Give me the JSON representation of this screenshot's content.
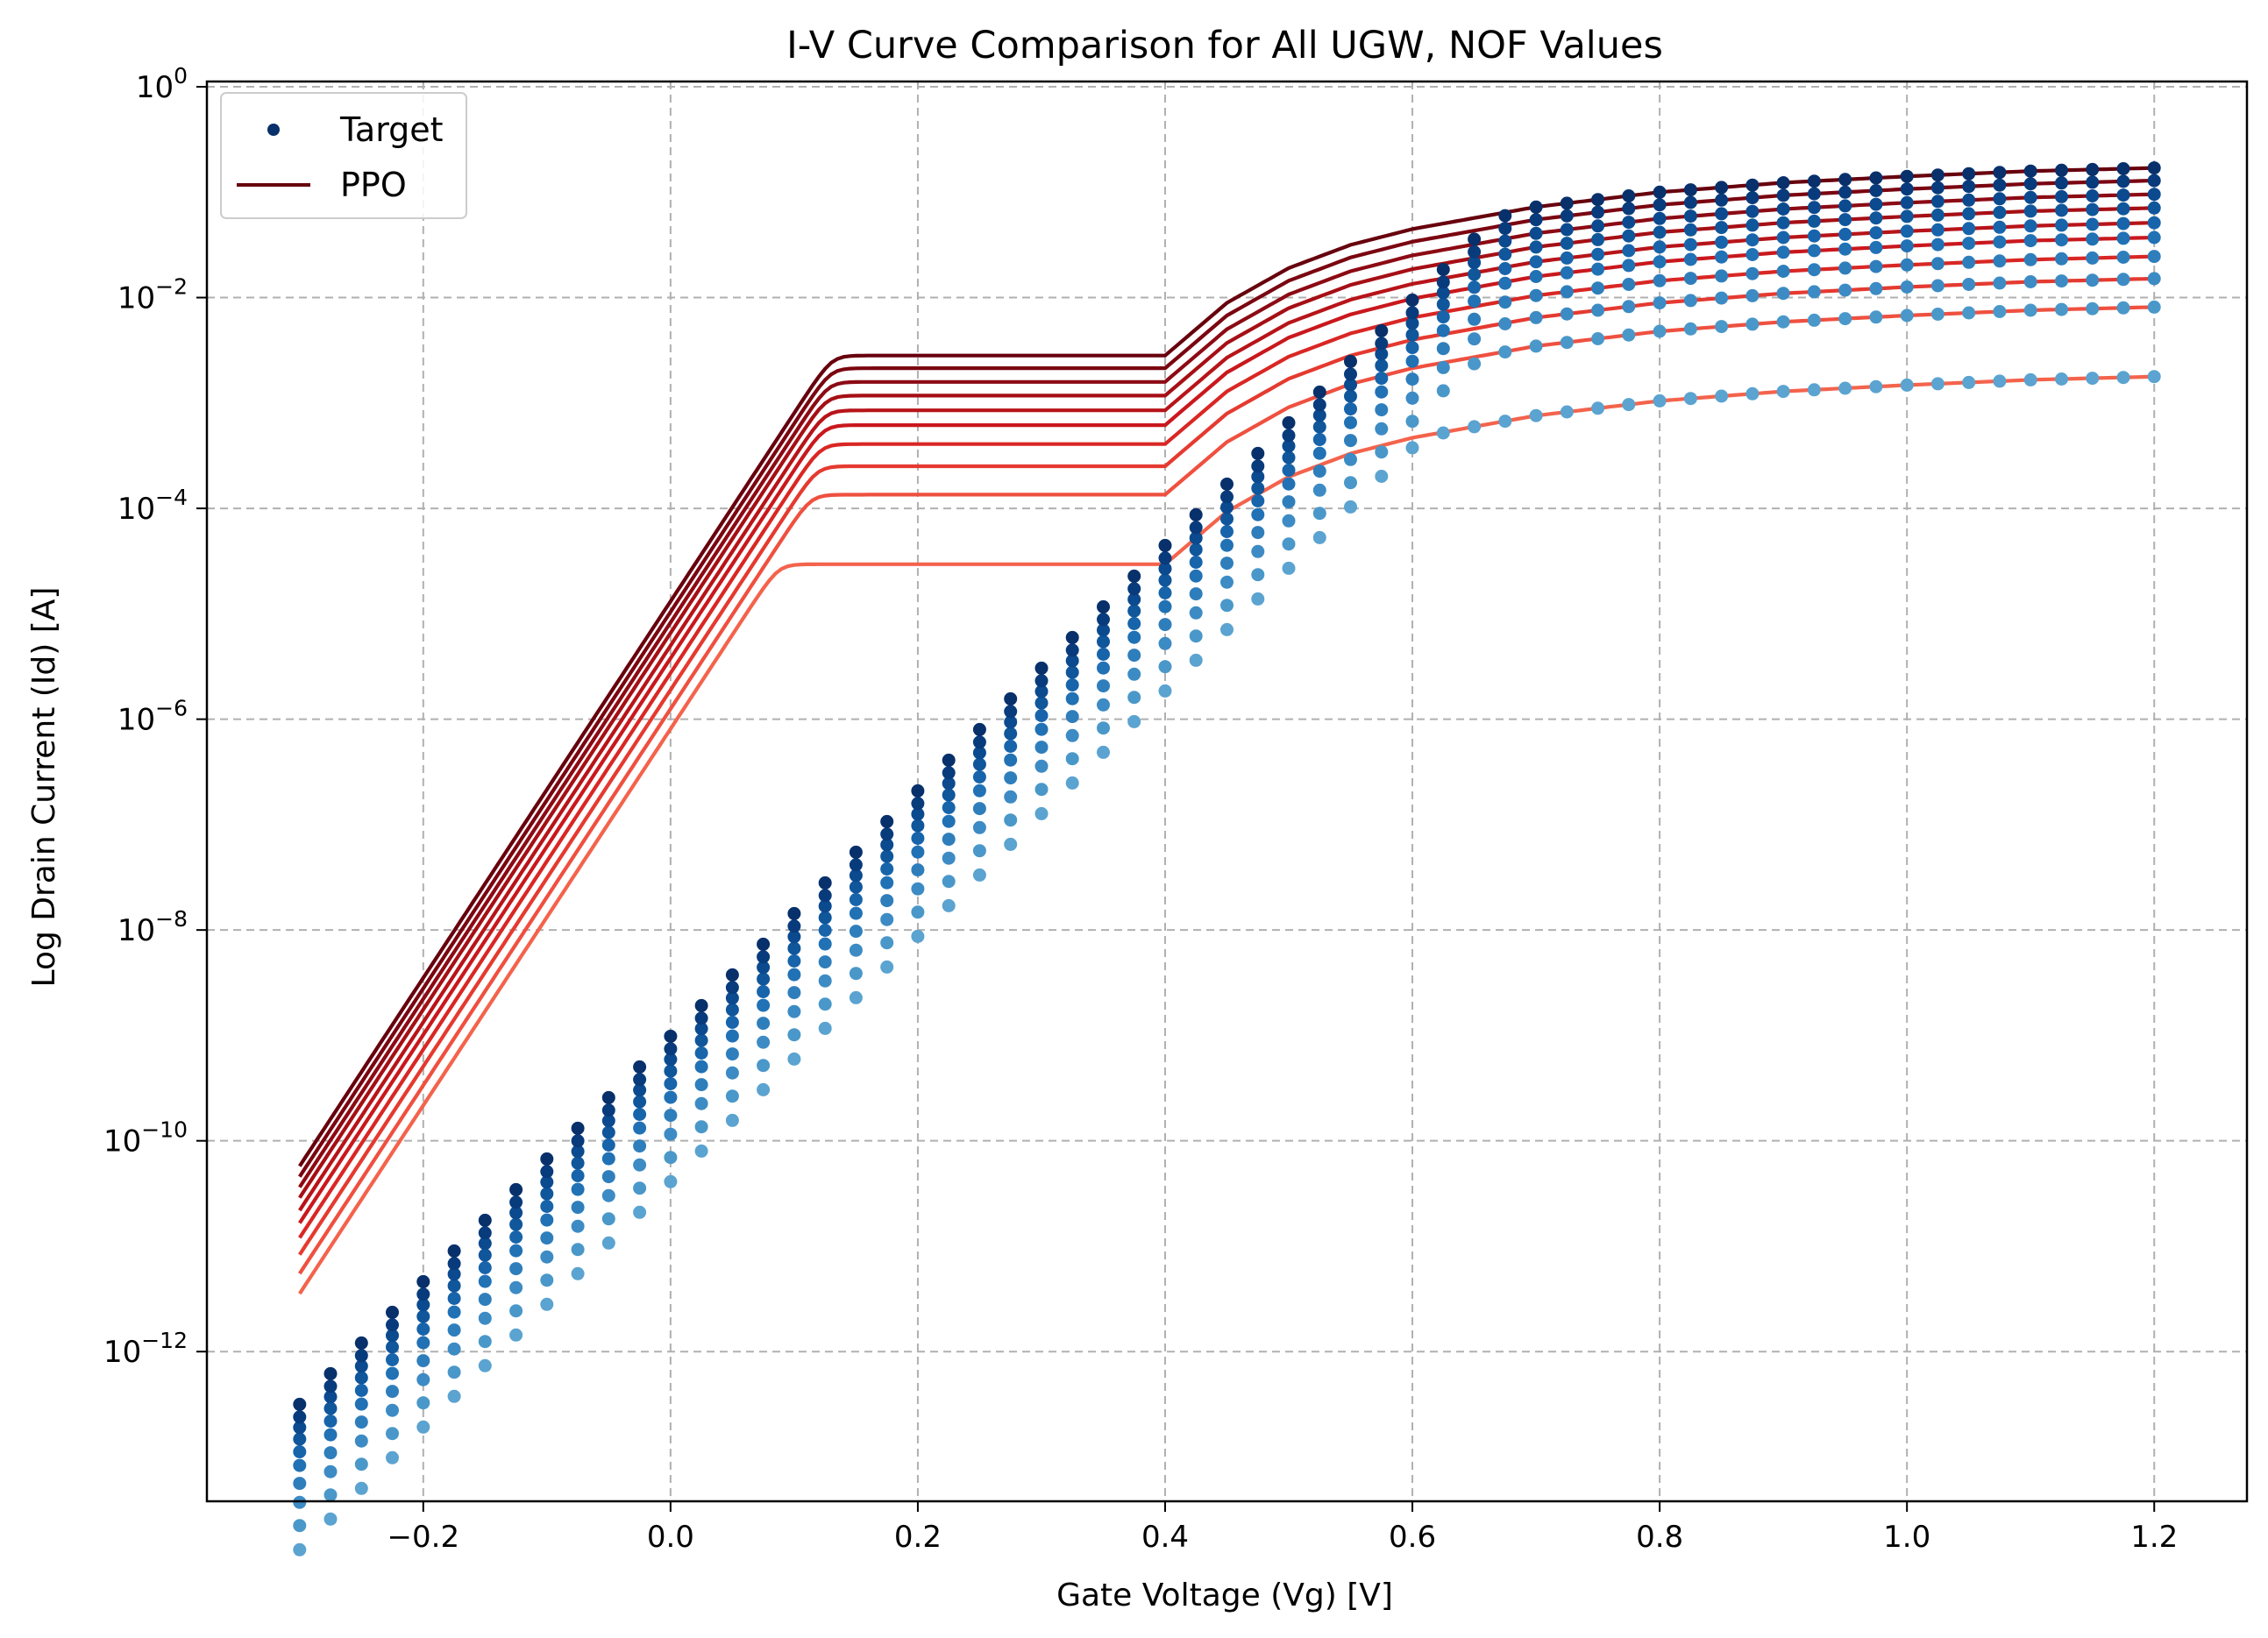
{
  "chart_data": {
    "type": "scatter",
    "title": "I-V Curve Comparison for All UGW, NOF Values",
    "xlabel": "Gate Voltage (Vg) [V]",
    "ylabel": "Log Drain Current (Id) [A]",
    "x_scale": "linear",
    "y_scale": "log",
    "xlim": [
      -0.375,
      1.275
    ],
    "ylim_log10": [
      -13.42,
      0.05
    ],
    "x_ticks": [
      -0.2,
      0.0,
      0.2,
      0.4,
      0.6,
      0.8,
      1.0,
      1.2
    ],
    "x_tick_labels": [
      "−0.2",
      "0.0",
      "0.2",
      "0.4",
      "0.6",
      "0.8",
      "1.0",
      "1.2"
    ],
    "y_ticks_log10": [
      0,
      -2,
      -4,
      -6,
      -8,
      -10,
      -12
    ],
    "y_tick_labels": [
      "0",
      "−2",
      "−4",
      "−6",
      "−8",
      "−10",
      "−12"
    ],
    "y_tick_base": "10",
    "grid": true,
    "legend": {
      "position": "top-left",
      "entries": [
        {
          "label": "Target",
          "marker": "dot",
          "color": "#08306b"
        },
        {
          "label": "PPO",
          "marker": "line",
          "color": "#67000d"
        }
      ]
    },
    "target_model": {
      "description_of_values": "log10(Id) vs Vg per curve",
      "vg_start": -0.3,
      "vg_end": 1.2,
      "vg_step": 0.025,
      "sub_slope_per_V": 11.64,
      "sub_min_log10": -12.5,
      "sat_shape": [
        [
          0.4,
          -2.55
        ],
        [
          0.45,
          -2.05
        ],
        [
          0.5,
          -1.72
        ],
        [
          0.55,
          -1.5
        ],
        [
          0.6,
          -1.35
        ],
        [
          0.7,
          -1.14
        ],
        [
          0.8,
          -1.0
        ],
        [
          0.9,
          -0.91
        ],
        [
          1.0,
          -0.85
        ],
        [
          1.1,
          -0.8
        ],
        [
          1.2,
          -0.77
        ]
      ],
      "sat_offsets": [
        0.0,
        -0.12,
        -0.25,
        -0.38,
        -0.52,
        -0.66,
        -0.84,
        -1.05,
        -1.32,
        -1.98
      ],
      "sub_offsets": [
        0.0,
        -0.12,
        -0.22,
        -0.33,
        -0.45,
        -0.58,
        -0.75,
        -0.93,
        -1.15,
        -1.38
      ]
    },
    "ppo_model": {
      "sub_start_log10": [
        -10.24,
        -10.34,
        -10.44,
        -10.54,
        -10.66,
        -10.78,
        -10.92,
        -11.08,
        -11.26,
        -11.45
      ],
      "sub_slope_per_V": 17.86
    },
    "target_colors": [
      "#08306b",
      "#083b7c",
      "#0b4a8f",
      "#10569b",
      "#1764ab",
      "#2171b5",
      "#2f7ebc",
      "#3d8bc4",
      "#4a98c9",
      "#5ba3d0"
    ],
    "ppo_colors": [
      "#67000d",
      "#7a0510",
      "#8c0a14",
      "#a50f15",
      "#b71419",
      "#c9181d",
      "#d92724",
      "#e53a30",
      "#ef5040",
      "#f4634c"
    ]
  }
}
